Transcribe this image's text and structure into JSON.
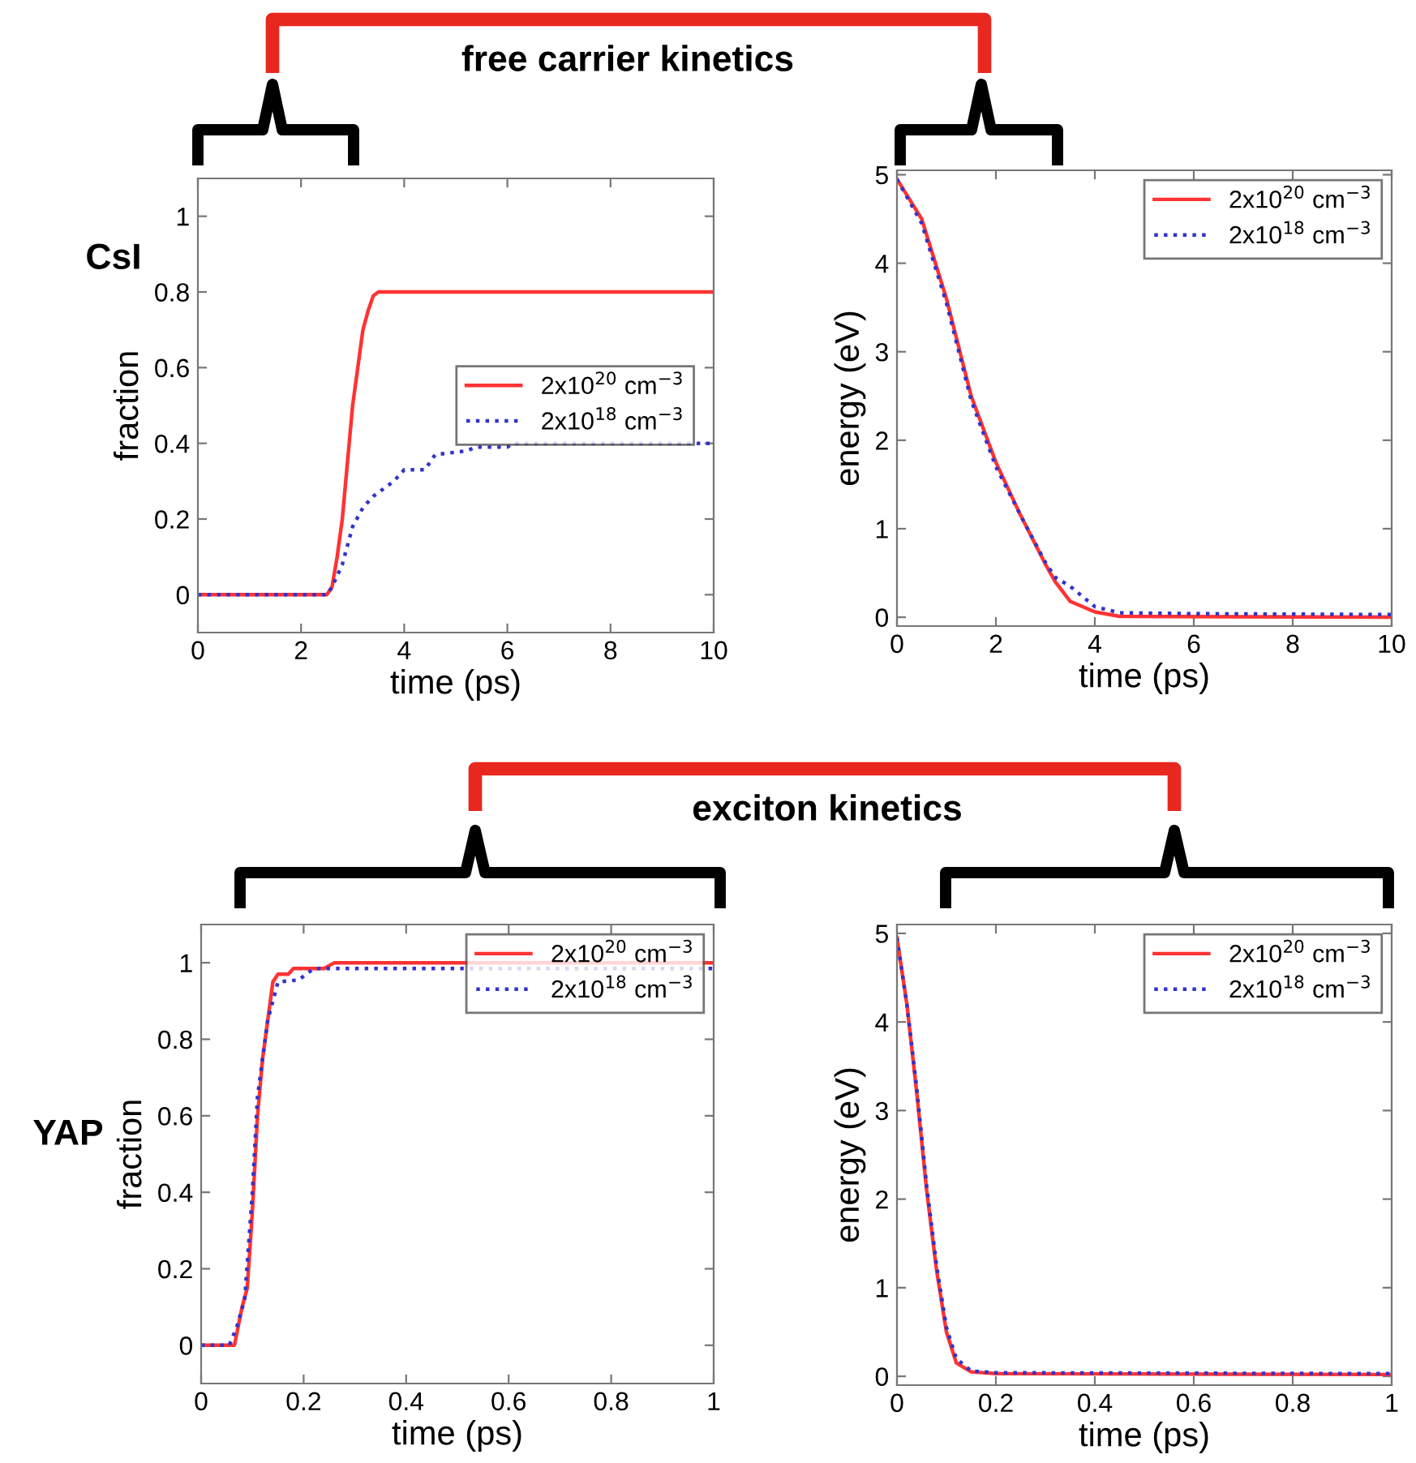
{
  "chart_data": [
    {
      "type": "line",
      "xlabel": "time (ps)",
      "ylabel": "fraction",
      "xlim": [
        0,
        10
      ],
      "xticks": [
        0,
        2,
        4,
        6,
        8,
        10
      ],
      "ylim": [
        -0.1,
        1.1
      ],
      "yticks": [
        0,
        0.2,
        0.4,
        0.6,
        0.8,
        1
      ],
      "legend": "right",
      "annotations": [
        "free carrier kinetics",
        "CsI"
      ],
      "series": [
        {
          "name": "2x10$^{20}$ cm$^{−3}$",
          "color": "#ff3333",
          "line_style": "solid",
          "x": [
            0,
            2.5,
            2.6,
            2.7,
            2.8,
            2.9,
            3.0,
            3.1,
            3.2,
            3.3,
            3.4,
            3.5,
            10
          ],
          "values": [
            0,
            0,
            0.02,
            0.1,
            0.2,
            0.35,
            0.5,
            0.6,
            0.7,
            0.75,
            0.79,
            0.8,
            0.8
          ]
        },
        {
          "name": "2x10$^{18}$ cm$^{−3}$",
          "color": "#3333cc",
          "line_style": "dotted",
          "x": [
            0,
            2.5,
            2.6,
            2.8,
            3.0,
            3.2,
            3.4,
            3.6,
            3.8,
            4.0,
            4.4,
            4.6,
            5.2,
            5.4,
            6.0,
            6.1,
            10
          ],
          "values": [
            0,
            0,
            0.02,
            0.08,
            0.18,
            0.23,
            0.26,
            0.28,
            0.3,
            0.33,
            0.33,
            0.37,
            0.38,
            0.39,
            0.39,
            0.4,
            0.4
          ]
        }
      ]
    },
    {
      "type": "line",
      "xlabel": "time (ps)",
      "ylabel": "energy (eV)",
      "xlim": [
        0,
        10
      ],
      "xticks": [
        0,
        2,
        4,
        6,
        8,
        10
      ],
      "ylim": [
        -0.1,
        5.05
      ],
      "yticks": [
        0,
        1,
        2,
        3,
        4,
        5
      ],
      "legend": "top right",
      "series": [
        {
          "name": "2x10$^{20}$ cm$^{−3}$",
          "color": "#ff3333",
          "line_style": "solid",
          "x": [
            0,
            0.5,
            1.0,
            1.5,
            2.0,
            2.5,
            3.0,
            3.2,
            3.5,
            4.0,
            4.5,
            10
          ],
          "values": [
            4.95,
            4.5,
            3.6,
            2.5,
            1.75,
            1.15,
            0.6,
            0.4,
            0.18,
            0.06,
            0.01,
            0
          ]
        },
        {
          "name": "2x10$^{18}$ cm$^{−3}$",
          "color": "#3333cc",
          "line_style": "dotted",
          "x": [
            0,
            0.5,
            1.0,
            1.5,
            2.0,
            2.5,
            3.0,
            3.2,
            3.5,
            4.0,
            4.5,
            6,
            10
          ],
          "values": [
            4.95,
            4.45,
            3.55,
            2.45,
            1.7,
            1.15,
            0.62,
            0.45,
            0.35,
            0.12,
            0.05,
            0.04,
            0.03
          ]
        }
      ]
    },
    {
      "type": "line",
      "xlabel": "time (ps)",
      "ylabel": "fraction",
      "xlim": [
        0,
        1
      ],
      "xticks": [
        0,
        0.2,
        0.4,
        0.6,
        0.8,
        1
      ],
      "ylim": [
        -0.1,
        1.1
      ],
      "yticks": [
        0,
        0.2,
        0.4,
        0.6,
        0.8,
        1
      ],
      "legend": "top right",
      "annotations": [
        "exciton kinetics",
        "YAP"
      ],
      "series": [
        {
          "name": "2x10$^{20}$ cm$^{−3}$",
          "color": "#ff3333",
          "line_style": "solid",
          "x": [
            0,
            0.065,
            0.08,
            0.09,
            0.1,
            0.11,
            0.12,
            0.13,
            0.14,
            0.15,
            0.17,
            0.18,
            0.24,
            0.26,
            1
          ],
          "values": [
            0,
            0,
            0.1,
            0.15,
            0.35,
            0.6,
            0.75,
            0.85,
            0.95,
            0.97,
            0.97,
            0.985,
            0.985,
            1.0,
            1.0
          ]
        },
        {
          "name": "2x10$^{18}$ cm$^{−3}$",
          "color": "#3333cc",
          "line_style": "dotted",
          "x": [
            0,
            0.055,
            0.07,
            0.085,
            0.1,
            0.11,
            0.13,
            0.15,
            0.19,
            0.22,
            1
          ],
          "values": [
            0,
            0,
            0.05,
            0.12,
            0.4,
            0.65,
            0.85,
            0.95,
            0.955,
            0.985,
            0.985
          ]
        }
      ]
    },
    {
      "type": "line",
      "xlabel": "time (ps)",
      "ylabel": "energy (eV)",
      "xlim": [
        0,
        1
      ],
      "xticks": [
        0,
        0.2,
        0.4,
        0.6,
        0.8,
        1
      ],
      "ylim": [
        -0.1,
        5.1
      ],
      "yticks": [
        0,
        1,
        2,
        3,
        4,
        5
      ],
      "legend": "top right",
      "series": [
        {
          "name": "2x10$^{20}$ cm$^{−3}$",
          "color": "#ff3333",
          "line_style": "solid",
          "x": [
            0,
            0.02,
            0.04,
            0.06,
            0.08,
            0.1,
            0.12,
            0.15,
            0.2,
            1
          ],
          "values": [
            4.95,
            4.2,
            3.2,
            2.1,
            1.2,
            0.5,
            0.15,
            0.05,
            0.03,
            0.02
          ]
        },
        {
          "name": "2x10$^{18}$ cm$^{−3}$",
          "color": "#3333cc",
          "line_style": "dotted",
          "x": [
            0,
            0.02,
            0.04,
            0.06,
            0.08,
            0.1,
            0.12,
            0.15,
            0.2,
            1
          ],
          "values": [
            4.95,
            4.2,
            3.25,
            2.15,
            1.25,
            0.55,
            0.2,
            0.06,
            0.04,
            0.03
          ]
        }
      ]
    }
  ]
}
